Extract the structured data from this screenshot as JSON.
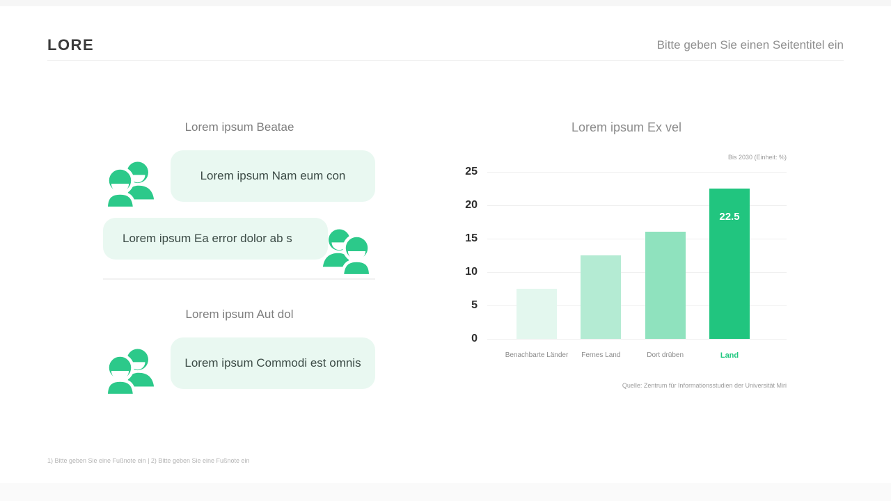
{
  "header": {
    "logo": "LORE",
    "page_title": "Bitte geben Sie einen Seitentitel ein"
  },
  "left": {
    "section1_heading": "Lorem ipsum Beatae",
    "bubble1": "Lorem ipsum Nam eum con",
    "bubble2": "Lorem ipsum Ea error dolor ab s",
    "section2_heading": "Lorem ipsum Aut dol",
    "bubble3": "Lorem ipsum Commodi est omnis"
  },
  "chart": {
    "title": "Lorem ipsum Ex vel",
    "unit_note": "Bis 2030 (Einheit: %)",
    "source": "Quelle: Zentrum für Informationsstudien der Universität Miri"
  },
  "chart_data": {
    "type": "bar",
    "title": "Lorem ipsum Ex vel",
    "subtitle": "Bis 2030 (Einheit: %)",
    "categories": [
      "Benachbarte Länder",
      "Fernes Land",
      "Dort drüben",
      "Land"
    ],
    "values": [
      7.5,
      12.5,
      16,
      22.5
    ],
    "value_labels": [
      "",
      "",
      "",
      "22.5"
    ],
    "bar_colors": [
      "#e3f7ee",
      "#b4ebd3",
      "#8fe2be",
      "#21c57f"
    ],
    "highlight_index": 3,
    "yticks": [
      0,
      5,
      10,
      15,
      20,
      25
    ],
    "ylim": [
      0,
      25
    ],
    "grid": "horizontal",
    "legend": "none",
    "source": "Quelle: Zentrum für Informationsstudien der Universität Miri"
  },
  "footer": {
    "footnote": "1) Bitte geben Sie eine Fußnote ein | 2) Bitte geben Sie eine Fußnote ein"
  },
  "colors": {
    "accent_green": "#21c57f",
    "icon_green": "#2cc98a",
    "bubble_bg": "#e9f8f1",
    "heading_gray": "#7e7e7e"
  }
}
